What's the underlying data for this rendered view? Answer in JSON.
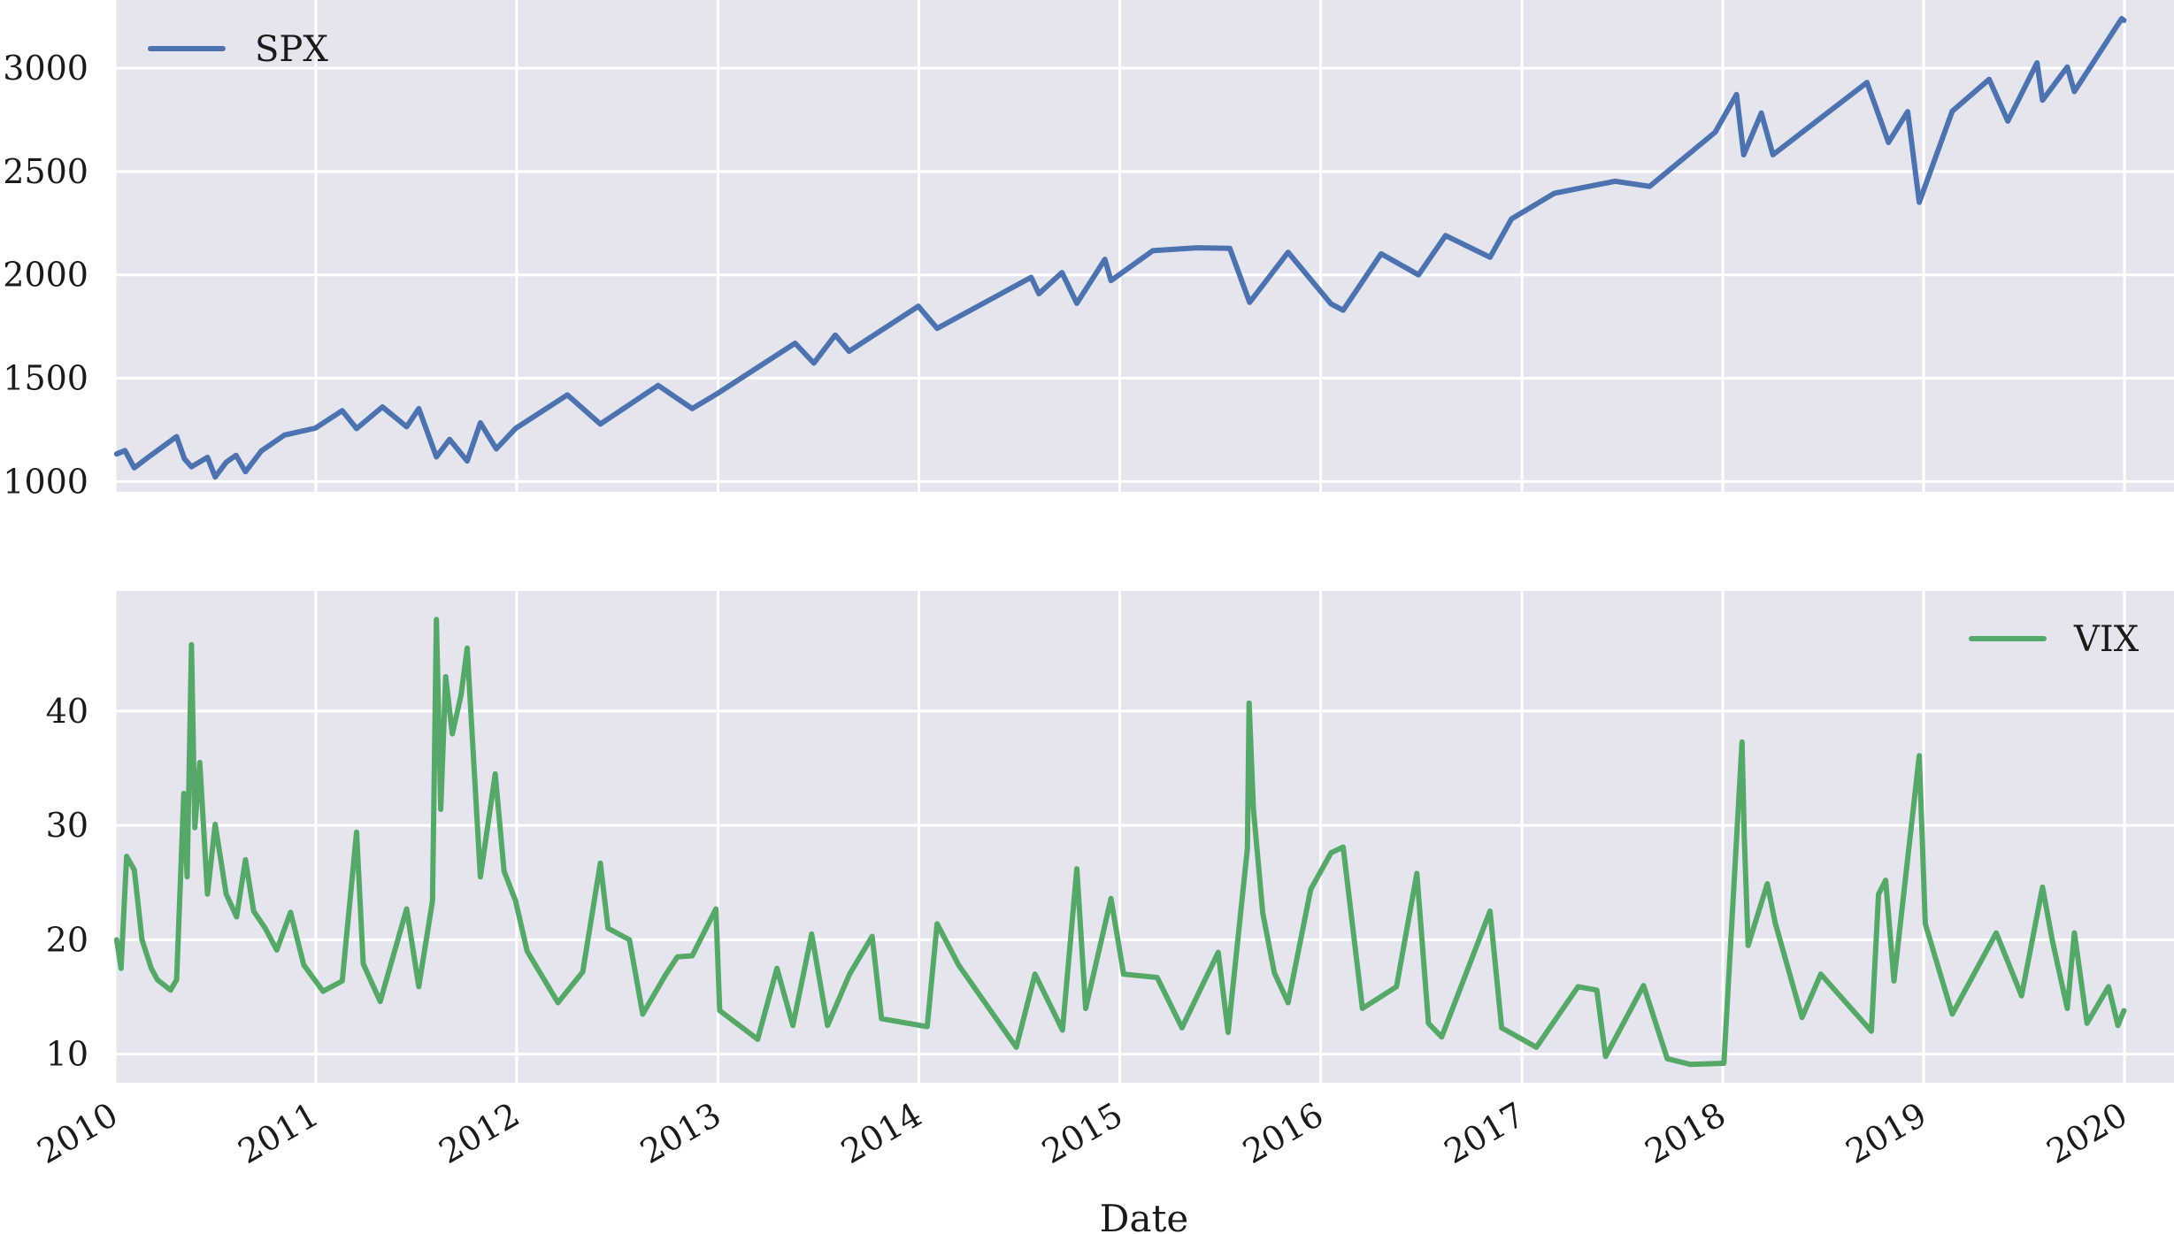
{
  "chart_data": [
    {
      "type": "line",
      "panel": "top",
      "title": "",
      "xlabel": "",
      "ylabel": "",
      "x_type": "date",
      "xlim": [
        "2010-01-01",
        "2020-03-31"
      ],
      "ylim": [
        950,
        3330
      ],
      "yticks": [
        1000,
        1500,
        2000,
        2500,
        3000
      ],
      "grid": true,
      "legend": "top-left",
      "series": [
        {
          "name": "SPX",
          "color": "#4c72b0",
          "points": [
            [
              "2010-01-04",
              1133
            ],
            [
              "2010-01-19",
              1150
            ],
            [
              "2010-02-05",
              1066
            ],
            [
              "2010-03-01",
              1115
            ],
            [
              "2010-04-23",
              1217
            ],
            [
              "2010-05-07",
              1110
            ],
            [
              "2010-05-20",
              1071
            ],
            [
              "2010-06-18",
              1117
            ],
            [
              "2010-07-02",
              1022
            ],
            [
              "2010-07-22",
              1093
            ],
            [
              "2010-08-09",
              1127
            ],
            [
              "2010-08-26",
              1047
            ],
            [
              "2010-09-24",
              1148
            ],
            [
              "2010-11-05",
              1225
            ],
            [
              "2010-12-31",
              1258
            ],
            [
              "2011-02-18",
              1343
            ],
            [
              "2011-03-16",
              1256
            ],
            [
              "2011-05-02",
              1361
            ],
            [
              "2011-06-15",
              1265
            ],
            [
              "2011-07-07",
              1353
            ],
            [
              "2011-08-08",
              1119
            ],
            [
              "2011-09-01",
              1204
            ],
            [
              "2011-10-03",
              1099
            ],
            [
              "2011-10-27",
              1284
            ],
            [
              "2011-11-25",
              1158
            ],
            [
              "2011-12-30",
              1257
            ],
            [
              "2012-04-02",
              1419
            ],
            [
              "2012-06-01",
              1278
            ],
            [
              "2012-09-14",
              1465
            ],
            [
              "2012-11-15",
              1353
            ],
            [
              "2012-12-31",
              1426
            ],
            [
              "2013-05-21",
              1669
            ],
            [
              "2013-06-24",
              1573
            ],
            [
              "2013-08-02",
              1709
            ],
            [
              "2013-08-27",
              1630
            ],
            [
              "2013-12-31",
              1848
            ],
            [
              "2014-02-03",
              1741
            ],
            [
              "2014-07-24",
              1988
            ],
            [
              "2014-08-07",
              1909
            ],
            [
              "2014-09-18",
              2011
            ],
            [
              "2014-10-15",
              1862
            ],
            [
              "2014-12-05",
              2075
            ],
            [
              "2014-12-16",
              1972
            ],
            [
              "2015-03-02",
              2117
            ],
            [
              "2015-05-21",
              2131
            ],
            [
              "2015-07-20",
              2128
            ],
            [
              "2015-08-25",
              1867
            ],
            [
              "2015-11-03",
              2109
            ],
            [
              "2016-01-20",
              1859
            ],
            [
              "2016-02-11",
              1829
            ],
            [
              "2016-04-20",
              2102
            ],
            [
              "2016-06-27",
              2000
            ],
            [
              "2016-08-15",
              2190
            ],
            [
              "2016-11-04",
              2085
            ],
            [
              "2016-12-13",
              2271
            ],
            [
              "2017-03-01",
              2395
            ],
            [
              "2017-06-19",
              2453
            ],
            [
              "2017-08-21",
              2428
            ],
            [
              "2017-12-18",
              2690
            ],
            [
              "2018-01-26",
              2873
            ],
            [
              "2018-02-08",
              2581
            ],
            [
              "2018-03-12",
              2783
            ],
            [
              "2018-04-02",
              2581
            ],
            [
              "2018-09-20",
              2931
            ],
            [
              "2018-10-29",
              2641
            ],
            [
              "2018-12-03",
              2790
            ],
            [
              "2018-12-24",
              2351
            ],
            [
              "2019-02-22",
              2792
            ],
            [
              "2019-04-30",
              2946
            ],
            [
              "2019-06-03",
              2744
            ],
            [
              "2019-07-26",
              3026
            ],
            [
              "2019-08-05",
              2845
            ],
            [
              "2019-09-19",
              3006
            ],
            [
              "2019-10-02",
              2887
            ],
            [
              "2019-12-27",
              3240
            ],
            [
              "2019-12-31",
              3231
            ]
          ]
        }
      ]
    },
    {
      "type": "line",
      "panel": "bottom",
      "title": "",
      "xlabel": "Date",
      "ylabel": "",
      "x_type": "date",
      "xlim": [
        "2010-01-01",
        "2020-03-31"
      ],
      "xticks": [
        "2010",
        "2011",
        "2012",
        "2013",
        "2014",
        "2015",
        "2016",
        "2017",
        "2018",
        "2019",
        "2020"
      ],
      "ylim": [
        7.5,
        50.5
      ],
      "yticks": [
        10,
        20,
        30,
        40
      ],
      "grid": true,
      "legend": "top-right",
      "series": [
        {
          "name": "VIX",
          "color": "#55a868",
          "points": [
            [
              "2010-01-04",
              20.0
            ],
            [
              "2010-01-12",
              17.5
            ],
            [
              "2010-01-22",
              27.3
            ],
            [
              "2010-02-05",
              26.1
            ],
            [
              "2010-02-19",
              20.0
            ],
            [
              "2010-03-08",
              17.5
            ],
            [
              "2010-03-19",
              16.5
            ],
            [
              "2010-04-12",
              15.6
            ],
            [
              "2010-04-23",
              16.5
            ],
            [
              "2010-05-06",
              32.8
            ],
            [
              "2010-05-12",
              25.5
            ],
            [
              "2010-05-20",
              45.8
            ],
            [
              "2010-05-26",
              29.8
            ],
            [
              "2010-06-04",
              35.5
            ],
            [
              "2010-06-18",
              24.0
            ],
            [
              "2010-07-02",
              30.1
            ],
            [
              "2010-07-22",
              24.0
            ],
            [
              "2010-08-10",
              22.0
            ],
            [
              "2010-08-26",
              27.0
            ],
            [
              "2010-09-10",
              22.5
            ],
            [
              "2010-10-01",
              21.0
            ],
            [
              "2010-10-22",
              19.1
            ],
            [
              "2010-11-16",
              22.4
            ],
            [
              "2010-12-10",
              17.8
            ],
            [
              "2011-01-14",
              15.5
            ],
            [
              "2011-02-18",
              16.4
            ],
            [
              "2011-03-16",
              29.4
            ],
            [
              "2011-03-28",
              17.9
            ],
            [
              "2011-04-28",
              14.6
            ],
            [
              "2011-06-15",
              22.7
            ],
            [
              "2011-07-07",
              15.9
            ],
            [
              "2011-08-01",
              23.4
            ],
            [
              "2011-08-08",
              48.0
            ],
            [
              "2011-08-16",
              31.4
            ],
            [
              "2011-08-25",
              43.0
            ],
            [
              "2011-09-06",
              38.0
            ],
            [
              "2011-09-22",
              41.4
            ],
            [
              "2011-10-03",
              45.5
            ],
            [
              "2011-10-27",
              25.5
            ],
            [
              "2011-11-23",
              34.5
            ],
            [
              "2011-12-09",
              26.0
            ],
            [
              "2011-12-30",
              23.4
            ],
            [
              "2012-01-20",
              19.0
            ],
            [
              "2012-03-16",
              14.5
            ],
            [
              "2012-04-30",
              17.2
            ],
            [
              "2012-06-01",
              26.7
            ],
            [
              "2012-06-15",
              21.0
            ],
            [
              "2012-07-24",
              20.0
            ],
            [
              "2012-08-17",
              13.5
            ],
            [
              "2012-09-26",
              16.8
            ],
            [
              "2012-10-19",
              18.5
            ],
            [
              "2012-11-15",
              18.6
            ],
            [
              "2012-12-28",
              22.7
            ],
            [
              "2013-01-04",
              13.8
            ],
            [
              "2013-03-14",
              11.3
            ],
            [
              "2013-04-18",
              17.5
            ],
            [
              "2013-05-17",
              12.5
            ],
            [
              "2013-06-20",
              20.5
            ],
            [
              "2013-07-19",
              12.5
            ],
            [
              "2013-08-28",
              17.0
            ],
            [
              "2013-10-08",
              20.3
            ],
            [
              "2013-10-25",
              13.1
            ],
            [
              "2014-01-16",
              12.4
            ],
            [
              "2014-02-03",
              21.4
            ],
            [
              "2014-03-14",
              17.8
            ],
            [
              "2014-06-27",
              10.6
            ],
            [
              "2014-07-31",
              17.0
            ],
            [
              "2014-09-19",
              12.1
            ],
            [
              "2014-10-15",
              26.2
            ],
            [
              "2014-10-31",
              14.0
            ],
            [
              "2014-12-16",
              23.6
            ],
            [
              "2015-01-08",
              17.0
            ],
            [
              "2015-03-10",
              16.7
            ],
            [
              "2015-04-24",
              12.3
            ],
            [
              "2015-06-29",
              18.9
            ],
            [
              "2015-07-17",
              11.9
            ],
            [
              "2015-08-21",
              28.0
            ],
            [
              "2015-08-24",
              40.7
            ],
            [
              "2015-09-01",
              31.4
            ],
            [
              "2015-09-18",
              22.3
            ],
            [
              "2015-10-09",
              17.1
            ],
            [
              "2015-11-03",
              14.5
            ],
            [
              "2015-12-14",
              24.4
            ],
            [
              "2016-01-20",
              27.6
            ],
            [
              "2016-02-11",
              28.1
            ],
            [
              "2016-03-17",
              14.0
            ],
            [
              "2016-05-18",
              15.9
            ],
            [
              "2016-06-24",
              25.8
            ],
            [
              "2016-07-15",
              12.7
            ],
            [
              "2016-08-08",
              11.5
            ],
            [
              "2016-11-04",
              22.5
            ],
            [
              "2016-11-25",
              12.3
            ],
            [
              "2017-01-27",
              10.6
            ],
            [
              "2017-04-13",
              15.9
            ],
            [
              "2017-05-17",
              15.6
            ],
            [
              "2017-06-02",
              9.8
            ],
            [
              "2017-08-10",
              16.0
            ],
            [
              "2017-09-22",
              9.6
            ],
            [
              "2017-11-03",
              9.1
            ],
            [
              "2018-01-03",
              9.2
            ],
            [
              "2018-02-05",
              37.3
            ],
            [
              "2018-02-09",
              29.1
            ],
            [
              "2018-02-16",
              19.5
            ],
            [
              "2018-03-23",
              24.9
            ],
            [
              "2018-04-06",
              21.5
            ],
            [
              "2018-05-25",
              13.2
            ],
            [
              "2018-06-28",
              17.0
            ],
            [
              "2018-09-28",
              12.0
            ],
            [
              "2018-10-11",
              24.0
            ],
            [
              "2018-10-24",
              25.2
            ],
            [
              "2018-11-08",
              16.4
            ],
            [
              "2018-12-24",
              36.1
            ],
            [
              "2019-01-04",
              21.4
            ],
            [
              "2019-02-22",
              13.5
            ],
            [
              "2019-05-13",
              20.6
            ],
            [
              "2019-06-28",
              15.1
            ],
            [
              "2019-08-05",
              24.6
            ],
            [
              "2019-08-23",
              19.9
            ],
            [
              "2019-09-19",
              14.0
            ],
            [
              "2019-10-02",
              20.6
            ],
            [
              "2019-10-25",
              12.7
            ],
            [
              "2019-12-03",
              15.9
            ],
            [
              "2019-12-20",
              12.5
            ],
            [
              "2019-12-31",
              13.8
            ]
          ]
        }
      ]
    }
  ]
}
